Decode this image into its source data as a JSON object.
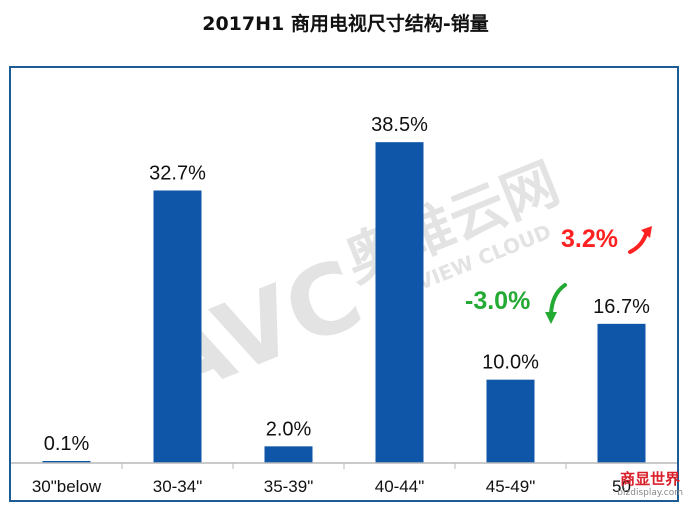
{
  "chart_data": {
    "type": "bar",
    "title": "2017H1 商用电视尺寸结构-销量",
    "categories": [
      "30\"below",
      "30-34\"",
      "35-39\"",
      "40-44\"",
      "45-49\"",
      "50"
    ],
    "values": [
      0.1,
      32.7,
      2.0,
      38.5,
      10.0,
      16.7
    ],
    "value_labels": [
      "0.1%",
      "32.7%",
      "2.0%",
      "38.5%",
      "10.0%",
      "16.7%"
    ],
    "ylim": [
      0,
      45
    ],
    "xlabel": "",
    "ylabel": "",
    "grid": false,
    "bar_color": "#0f56a8",
    "annotations": [
      {
        "text": "3.2%",
        "color": "#ff2222",
        "direction": "up"
      },
      {
        "text": "-3.0%",
        "color": "#22aa33",
        "direction": "down"
      }
    ]
  },
  "watermark": {
    "brand": "AVC",
    "cn_text": "奥维云网",
    "en_text": "ALL VIEW CLOUD",
    "logo_cn": "商显世界",
    "logo_en": "bizdisplay.com"
  }
}
